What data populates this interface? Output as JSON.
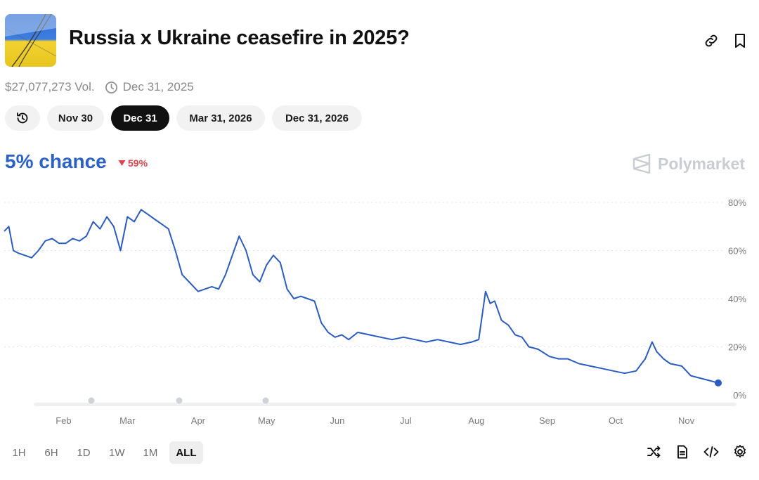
{
  "market": {
    "title": "Russia x Ukraine ceasefire in 2025?",
    "volume": "$27,077,273 Vol.",
    "end_date": "Dec 31, 2025"
  },
  "date_pills": [
    {
      "label": "Nov 30",
      "active": false
    },
    {
      "label": "Dec 31",
      "active": true
    },
    {
      "label": "Mar 31, 2026",
      "active": false
    },
    {
      "label": "Dec 31, 2026",
      "active": false
    }
  ],
  "probability": {
    "chance_text": "5% chance",
    "change_text": "59%",
    "change_direction": "down"
  },
  "brand": "Polymarket",
  "colors": {
    "line": "#2a5cc4",
    "chance": "#2a62c9",
    "down": "#e0454c",
    "grid": "#e2e4e8"
  },
  "time_ranges": [
    {
      "label": "1H",
      "active": false
    },
    {
      "label": "6H",
      "active": false
    },
    {
      "label": "1D",
      "active": false
    },
    {
      "label": "1W",
      "active": false
    },
    {
      "label": "1M",
      "active": false
    },
    {
      "label": "ALL",
      "active": true
    }
  ],
  "tool_icons": [
    "shuffle-icon",
    "document-icon",
    "code-icon",
    "gear-icon"
  ],
  "chart_data": {
    "type": "line",
    "title": "",
    "xlabel": "",
    "ylabel": "",
    "ylim": [
      0,
      80
    ],
    "yticks": [
      0,
      20,
      40,
      60,
      80
    ],
    "ytick_labels": [
      "0%",
      "20%",
      "40%",
      "60%",
      "80%"
    ],
    "xticks": [
      "Feb",
      "Mar",
      "Apr",
      "May",
      "Jun",
      "Jul",
      "Aug",
      "Sep",
      "Oct",
      "Nov"
    ],
    "grid": true,
    "series": [
      {
        "name": "",
        "x": [
          "2025-01-06",
          "2025-01-08",
          "2025-01-10",
          "2025-01-12",
          "2025-01-15",
          "2025-01-18",
          "2025-01-21",
          "2025-01-24",
          "2025-01-27",
          "2025-01-30",
          "2025-02-02",
          "2025-02-05",
          "2025-02-08",
          "2025-02-11",
          "2025-02-14",
          "2025-02-17",
          "2025-02-20",
          "2025-02-23",
          "2025-02-26",
          "2025-03-01",
          "2025-03-04",
          "2025-03-07",
          "2025-03-10",
          "2025-03-13",
          "2025-03-16",
          "2025-03-19",
          "2025-03-22",
          "2025-03-25",
          "2025-03-28",
          "2025-04-01",
          "2025-04-04",
          "2025-04-07",
          "2025-04-10",
          "2025-04-13",
          "2025-04-16",
          "2025-04-19",
          "2025-04-22",
          "2025-04-25",
          "2025-04-28",
          "2025-05-01",
          "2025-05-04",
          "2025-05-07",
          "2025-05-10",
          "2025-05-13",
          "2025-05-16",
          "2025-05-19",
          "2025-05-22",
          "2025-05-25",
          "2025-05-28",
          "2025-05-31",
          "2025-06-03",
          "2025-06-06",
          "2025-06-10",
          "2025-06-15",
          "2025-06-20",
          "2025-06-25",
          "2025-06-30",
          "2025-07-05",
          "2025-07-10",
          "2025-07-15",
          "2025-07-20",
          "2025-07-25",
          "2025-07-30",
          "2025-08-02",
          "2025-08-05",
          "2025-08-07",
          "2025-08-09",
          "2025-08-12",
          "2025-08-15",
          "2025-08-18",
          "2025-08-21",
          "2025-08-24",
          "2025-08-28",
          "2025-09-02",
          "2025-09-06",
          "2025-09-10",
          "2025-09-15",
          "2025-09-20",
          "2025-09-25",
          "2025-09-30",
          "2025-10-05",
          "2025-10-10",
          "2025-10-14",
          "2025-10-17",
          "2025-10-19",
          "2025-10-22",
          "2025-10-25",
          "2025-10-30",
          "2025-11-03",
          "2025-11-07",
          "2025-11-11",
          "2025-11-15"
        ],
        "y": [
          68,
          70,
          60,
          59,
          58,
          57,
          60,
          64,
          65,
          63,
          63,
          65,
          64,
          66,
          72,
          69,
          74,
          70,
          60,
          74,
          72,
          77,
          75,
          73,
          71,
          69,
          60,
          50,
          47,
          43,
          44,
          45,
          44,
          50,
          58,
          66,
          60,
          50,
          47,
          54,
          58,
          55,
          44,
          40,
          41,
          40,
          39,
          30,
          26,
          24,
          25,
          23,
          26,
          25,
          24,
          23,
          24,
          23,
          22,
          23,
          22,
          21,
          22,
          23,
          43,
          38,
          39,
          31,
          29,
          25,
          24,
          20,
          19,
          16,
          15,
          15,
          13,
          12,
          11,
          10,
          9,
          10,
          15,
          22,
          18,
          15,
          13,
          12,
          8,
          7,
          6,
          5
        ]
      }
    ],
    "current_value": 5
  }
}
